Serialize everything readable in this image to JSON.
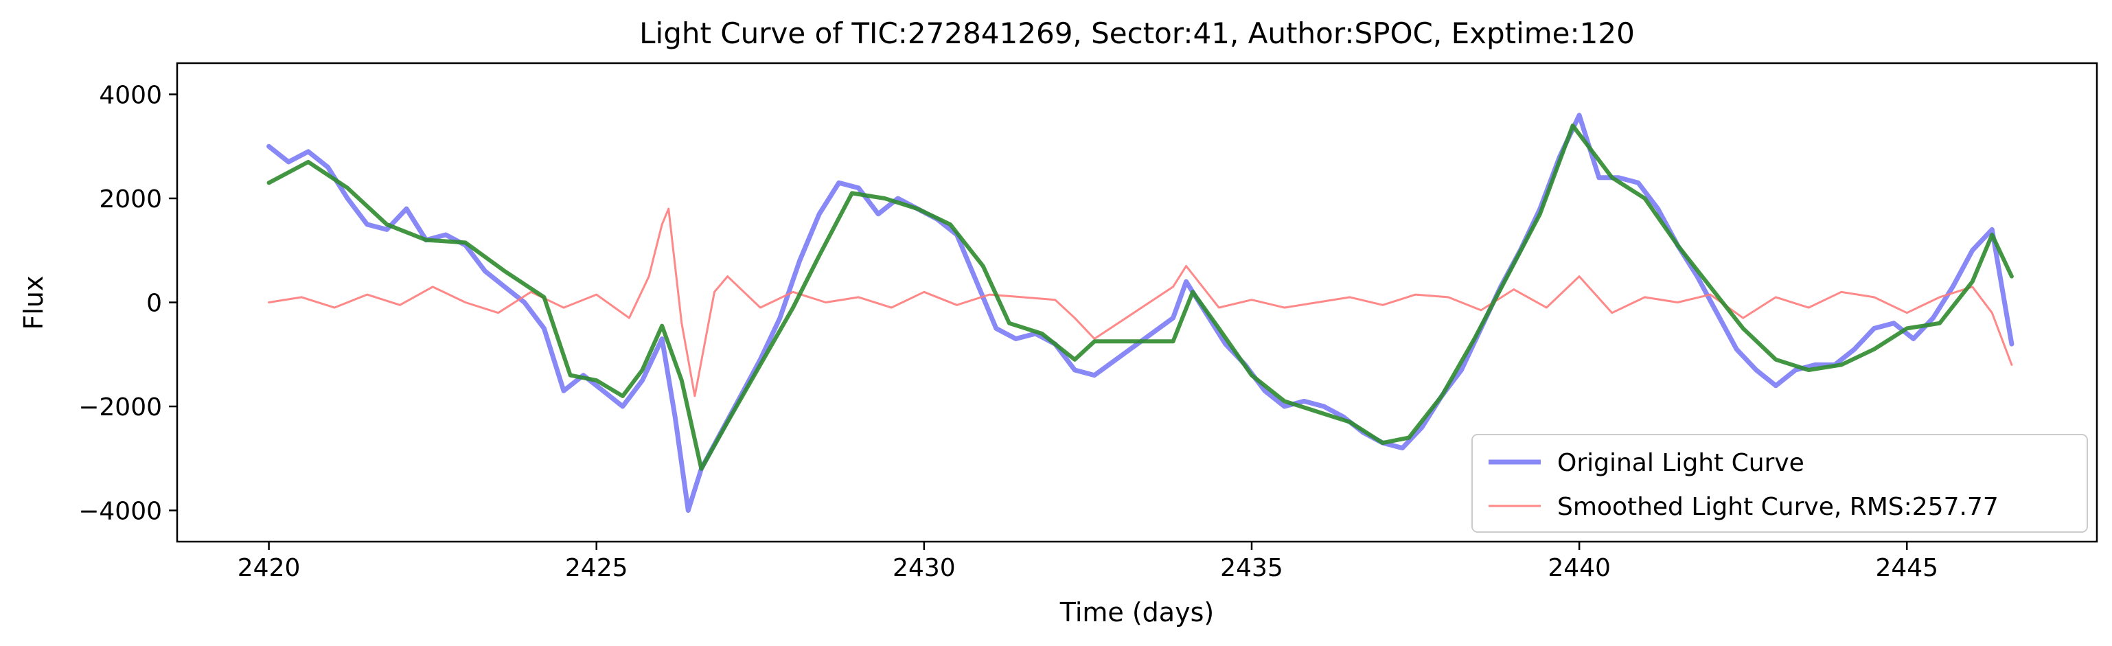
{
  "chart_data": {
    "type": "line",
    "title": "Light Curve of TIC:272841269, Sector:41, Author:SPOC, Exptime:120",
    "xlabel": "Time (days)",
    "ylabel": "Flux",
    "xlim": [
      2418.6,
      2447.9
    ],
    "ylim": [
      -4600,
      4600
    ],
    "xticks": [
      2420,
      2425,
      2430,
      2435,
      2440,
      2445
    ],
    "yticks": [
      -4000,
      -2000,
      0,
      2000,
      4000
    ],
    "xtick_labels": [
      "2420",
      "2425",
      "2430",
      "2435",
      "2440",
      "2445"
    ],
    "ytick_labels": [
      "−4000",
      "−2000",
      "0",
      "2000",
      "4000"
    ],
    "grid": false,
    "legend_position": "lower-right",
    "series": [
      {
        "name": "Original Light Curve",
        "color": "#7b7bf5",
        "x": [
          2420.0,
          2420.3,
          2420.6,
          2420.9,
          2421.2,
          2421.5,
          2421.8,
          2422.1,
          2422.4,
          2422.7,
          2423.0,
          2423.3,
          2423.6,
          2423.9,
          2424.2,
          2424.5,
          2424.8,
          2425.1,
          2425.4,
          2425.7,
          2426.0,
          2426.2,
          2426.4,
          2426.6,
          2426.9,
          2427.2,
          2427.5,
          2427.8,
          2428.1,
          2428.4,
          2428.7,
          2429.0,
          2429.3,
          2429.6,
          2429.9,
          2430.2,
          2430.5,
          2430.8,
          2431.1,
          2431.4,
          2431.7,
          2432.0,
          2432.3,
          2432.6,
          2433.8,
          2434.0,
          2434.3,
          2434.6,
          2434.9,
          2435.2,
          2435.5,
          2435.8,
          2436.1,
          2436.4,
          2436.7,
          2437.0,
          2437.3,
          2437.6,
          2437.9,
          2438.2,
          2438.5,
          2438.8,
          2439.1,
          2439.4,
          2439.7,
          2440.0,
          2440.3,
          2440.6,
          2440.9,
          2441.2,
          2441.5,
          2441.8,
          2442.1,
          2442.4,
          2442.7,
          2443.0,
          2443.3,
          2443.6,
          2443.9,
          2444.2,
          2444.5,
          2444.8,
          2445.1,
          2445.4,
          2445.7,
          2446.0,
          2446.3,
          2446.6
        ],
        "y": [
          3000,
          2700,
          2900,
          2600,
          2000,
          1500,
          1400,
          1800,
          1200,
          1300,
          1100,
          600,
          300,
          0,
          -500,
          -1700,
          -1400,
          -1700,
          -2000,
          -1500,
          -700,
          -2200,
          -4000,
          -3200,
          -2500,
          -1800,
          -1100,
          -300,
          800,
          1700,
          2300,
          2200,
          1700,
          2000,
          1800,
          1600,
          1300,
          400,
          -500,
          -700,
          -600,
          -800,
          -1300,
          -1400,
          -300,
          400,
          -200,
          -800,
          -1200,
          -1700,
          -2000,
          -1900,
          -2000,
          -2200,
          -2500,
          -2700,
          -2800,
          -2400,
          -1800,
          -1300,
          -500,
          300,
          1000,
          1800,
          2800,
          3600,
          2400,
          2400,
          2300,
          1800,
          1100,
          500,
          -200,
          -900,
          -1300,
          -1600,
          -1300,
          -1200,
          -1200,
          -900,
          -500,
          -400,
          -700,
          -300,
          300,
          1000,
          1400,
          -800
        ]
      },
      {
        "name": "Smoothed Light Curve, RMS:257.77",
        "color": "#ff7b7b",
        "x": [
          2420.0,
          2420.5,
          2421.0,
          2421.5,
          2422.0,
          2422.5,
          2423.0,
          2423.5,
          2424.0,
          2424.5,
          2425.0,
          2425.5,
          2425.8,
          2426.0,
          2426.1,
          2426.3,
          2426.5,
          2426.8,
          2427.0,
          2427.5,
          2428.0,
          2428.5,
          2429.0,
          2429.5,
          2430.0,
          2430.5,
          2431.0,
          2431.5,
          2432.0,
          2432.3,
          2432.6,
          2433.8,
          2434.0,
          2434.5,
          2435.0,
          2435.5,
          2436.0,
          2436.5,
          2437.0,
          2437.5,
          2438.0,
          2438.5,
          2439.0,
          2439.5,
          2440.0,
          2440.5,
          2441.0,
          2441.5,
          2442.0,
          2442.5,
          2443.0,
          2443.5,
          2444.0,
          2444.5,
          2445.0,
          2445.5,
          2446.0,
          2446.3,
          2446.6
        ],
        "y": [
          0,
          100,
          -100,
          150,
          -50,
          300,
          0,
          -200,
          200,
          -100,
          150,
          -300,
          500,
          1500,
          1800,
          -400,
          -1800,
          200,
          500,
          -100,
          200,
          0,
          100,
          -100,
          200,
          -50,
          150,
          100,
          50,
          -300,
          -700,
          300,
          700,
          -100,
          50,
          -100,
          0,
          100,
          -50,
          150,
          100,
          -150,
          250,
          -100,
          500,
          -200,
          100,
          0,
          150,
          -300,
          100,
          -100,
          200,
          100,
          -200,
          100,
          300,
          -200,
          -1200
        ]
      },
      {
        "name": "",
        "color": "#2e8b2e",
        "x": [
          2420.0,
          2420.6,
          2421.2,
          2421.8,
          2422.4,
          2423.0,
          2423.6,
          2424.2,
          2424.6,
          2425.0,
          2425.4,
          2425.7,
          2426.0,
          2426.3,
          2426.6,
          2427.0,
          2427.5,
          2428.0,
          2428.4,
          2428.9,
          2429.4,
          2429.9,
          2430.4,
          2430.9,
          2431.3,
          2431.8,
          2432.3,
          2432.6,
          2433.8,
          2434.1,
          2434.5,
          2435.0,
          2435.5,
          2436.0,
          2436.5,
          2437.0,
          2437.4,
          2437.9,
          2438.4,
          2438.9,
          2439.4,
          2439.9,
          2440.2,
          2440.5,
          2441.0,
          2441.5,
          2442.0,
          2442.5,
          2443.0,
          2443.5,
          2444.0,
          2444.5,
          2445.0,
          2445.5,
          2446.0,
          2446.3,
          2446.6
        ],
        "y": [
          2300,
          2700,
          2200,
          1500,
          1200,
          1150,
          600,
          100,
          -1400,
          -1500,
          -1800,
          -1300,
          -450,
          -1500,
          -3200,
          -2300,
          -1200,
          -100,
          900,
          2100,
          2000,
          1800,
          1500,
          700,
          -400,
          -600,
          -1100,
          -750,
          -750,
          200,
          -500,
          -1400,
          -1900,
          -2100,
          -2300,
          -2700,
          -2600,
          -1800,
          -700,
          500,
          1700,
          3400,
          2900,
          2400,
          2000,
          1100,
          300,
          -500,
          -1100,
          -1300,
          -1200,
          -900,
          -500,
          -400,
          400,
          1300,
          500
        ]
      }
    ]
  }
}
